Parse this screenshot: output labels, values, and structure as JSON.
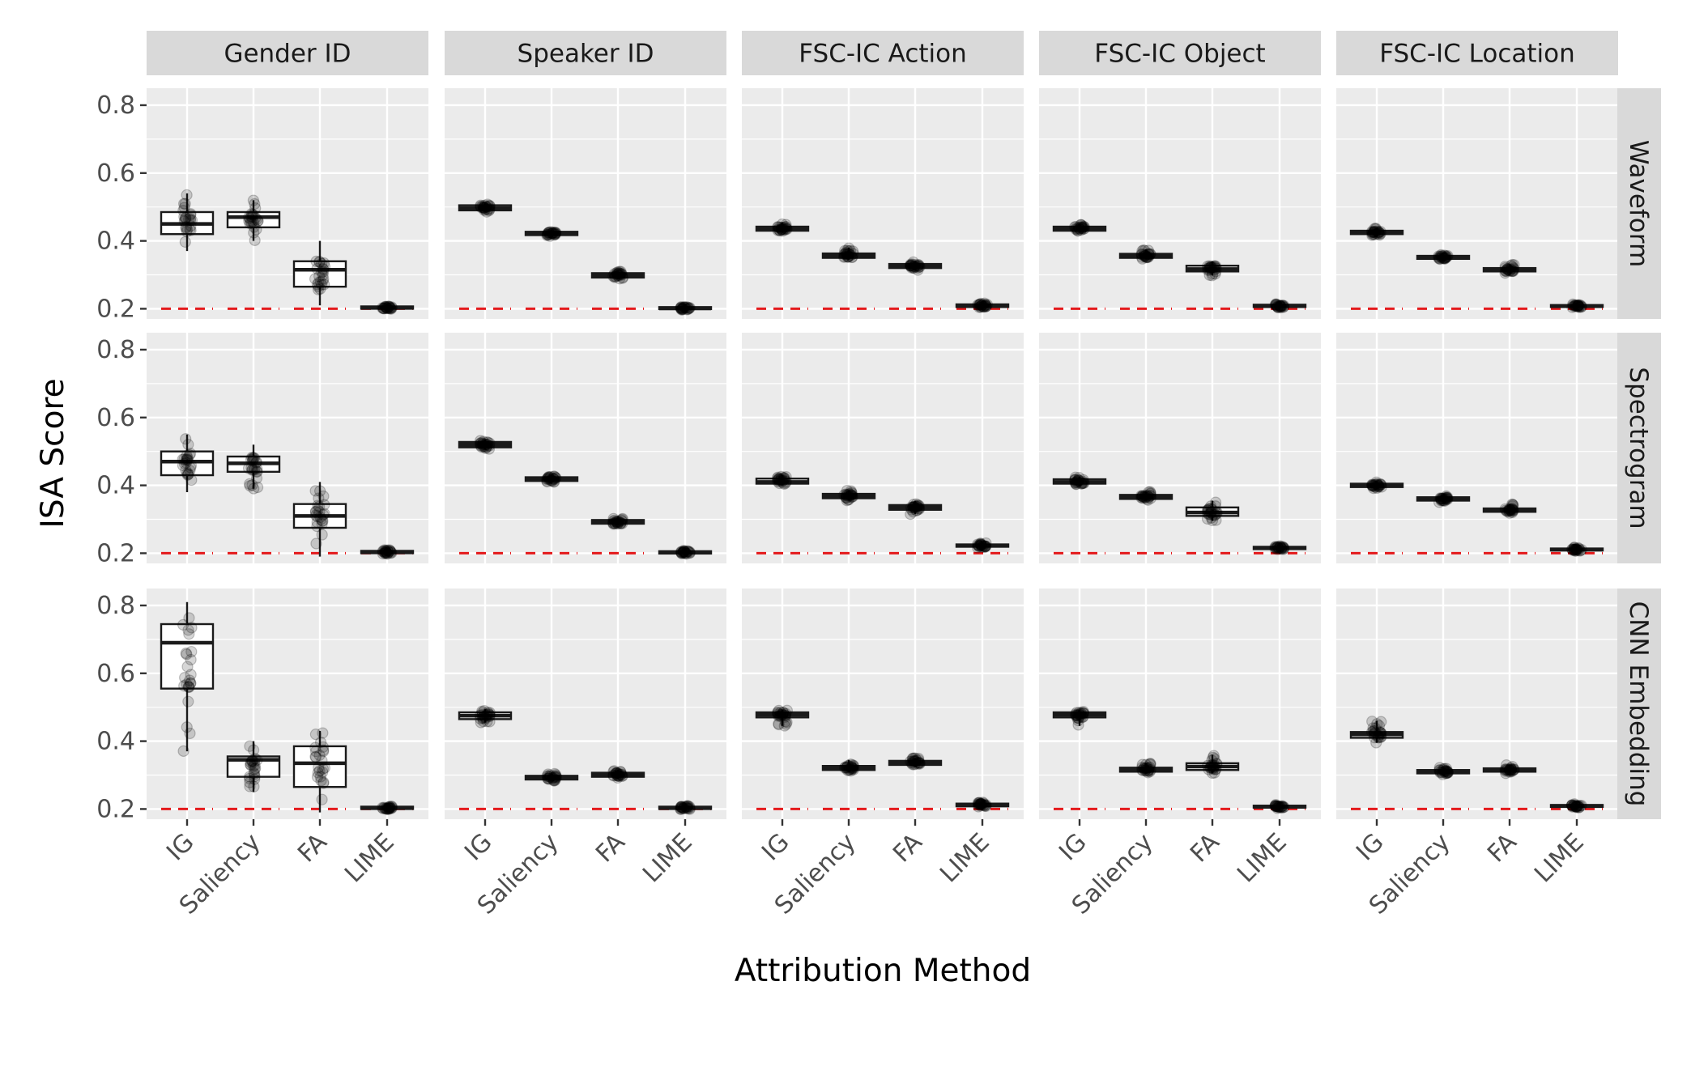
{
  "chart_data": {
    "type": "boxplot",
    "xlabel": "Attribution Method",
    "ylabel": "ISA Score",
    "ylim": [
      0.17,
      0.85
    ],
    "y_ticks": [
      0.2,
      0.4,
      0.6,
      0.8
    ],
    "y_tick_labels": [
      "0.2",
      "0.4",
      "0.6",
      "0.8"
    ],
    "methods": [
      "IG",
      "Saliency",
      "FA",
      "LIME"
    ],
    "columns": [
      "Gender ID",
      "Speaker ID",
      "FSC-IC Action",
      "FSC-IC Object",
      "FSC-IC Location"
    ],
    "rows": [
      "Waveform",
      "Spectrogram",
      "CNN Embedding"
    ],
    "baseline_value": 0.2,
    "colors": {
      "baseline": "#e41a1c",
      "panel": "#ebebeb",
      "strip": "#d9d9d9"
    },
    "grid": true,
    "panels": [
      {
        "row": "Waveform",
        "col": "Gender ID",
        "boxes": [
          {
            "method": "IG",
            "q1": 0.42,
            "median": 0.45,
            "q3": 0.485,
            "min": 0.37,
            "max": 0.54
          },
          {
            "method": "Saliency",
            "q1": 0.44,
            "median": 0.47,
            "q3": 0.485,
            "min": 0.4,
            "max": 0.52
          },
          {
            "method": "FA",
            "q1": 0.265,
            "median": 0.315,
            "q3": 0.34,
            "min": 0.21,
            "max": 0.4
          },
          {
            "method": "LIME",
            "q1": 0.2,
            "median": 0.203,
            "q3": 0.207,
            "min": 0.198,
            "max": 0.21
          }
        ]
      },
      {
        "row": "Waveform",
        "col": "Speaker ID",
        "boxes": [
          {
            "method": "IG",
            "q1": 0.49,
            "median": 0.497,
            "q3": 0.505,
            "min": 0.485,
            "max": 0.51
          },
          {
            "method": "Saliency",
            "q1": 0.417,
            "median": 0.422,
            "q3": 0.427,
            "min": 0.413,
            "max": 0.43
          },
          {
            "method": "FA",
            "q1": 0.292,
            "median": 0.298,
            "q3": 0.305,
            "min": 0.288,
            "max": 0.31
          },
          {
            "method": "LIME",
            "q1": 0.199,
            "median": 0.201,
            "q3": 0.205,
            "min": 0.197,
            "max": 0.207
          }
        ]
      },
      {
        "row": "Waveform",
        "col": "FSC-IC Action",
        "boxes": [
          {
            "method": "IG",
            "q1": 0.43,
            "median": 0.435,
            "q3": 0.442,
            "min": 0.425,
            "max": 0.455
          },
          {
            "method": "Saliency",
            "q1": 0.35,
            "median": 0.357,
            "q3": 0.363,
            "min": 0.345,
            "max": 0.38
          },
          {
            "method": "FA",
            "q1": 0.32,
            "median": 0.325,
            "q3": 0.332,
            "min": 0.312,
            "max": 0.34
          },
          {
            "method": "LIME",
            "q1": 0.205,
            "median": 0.208,
            "q3": 0.213,
            "min": 0.202,
            "max": 0.217
          }
        ]
      },
      {
        "row": "Waveform",
        "col": "FSC-IC Object",
        "boxes": [
          {
            "method": "IG",
            "q1": 0.43,
            "median": 0.435,
            "q3": 0.442,
            "min": 0.425,
            "max": 0.448
          },
          {
            "method": "Saliency",
            "q1": 0.35,
            "median": 0.356,
            "q3": 0.362,
            "min": 0.345,
            "max": 0.375
          },
          {
            "method": "FA",
            "q1": 0.31,
            "median": 0.317,
            "q3": 0.327,
            "min": 0.298,
            "max": 0.34
          },
          {
            "method": "LIME",
            "q1": 0.205,
            "median": 0.208,
            "q3": 0.212,
            "min": 0.203,
            "max": 0.215
          }
        ]
      },
      {
        "row": "Waveform",
        "col": "FSC-IC Location",
        "boxes": [
          {
            "method": "IG",
            "q1": 0.42,
            "median": 0.425,
            "q3": 0.43,
            "min": 0.415,
            "max": 0.438
          },
          {
            "method": "Saliency",
            "q1": 0.347,
            "median": 0.351,
            "q3": 0.356,
            "min": 0.343,
            "max": 0.36
          },
          {
            "method": "FA",
            "q1": 0.31,
            "median": 0.315,
            "q3": 0.32,
            "min": 0.305,
            "max": 0.33
          },
          {
            "method": "LIME",
            "q1": 0.205,
            "median": 0.208,
            "q3": 0.211,
            "min": 0.203,
            "max": 0.214
          }
        ]
      },
      {
        "row": "Spectrogram",
        "col": "Gender ID",
        "boxes": [
          {
            "method": "IG",
            "q1": 0.43,
            "median": 0.47,
            "q3": 0.5,
            "min": 0.38,
            "max": 0.55
          },
          {
            "method": "Saliency",
            "q1": 0.44,
            "median": 0.465,
            "q3": 0.485,
            "min": 0.39,
            "max": 0.52
          },
          {
            "method": "FA",
            "q1": 0.275,
            "median": 0.31,
            "q3": 0.345,
            "min": 0.19,
            "max": 0.41
          },
          {
            "method": "LIME",
            "q1": 0.2,
            "median": 0.203,
            "q3": 0.207,
            "min": 0.198,
            "max": 0.21
          }
        ]
      },
      {
        "row": "Spectrogram",
        "col": "Speaker ID",
        "boxes": [
          {
            "method": "IG",
            "q1": 0.512,
            "median": 0.52,
            "q3": 0.528,
            "min": 0.505,
            "max": 0.535
          },
          {
            "method": "Saliency",
            "q1": 0.413,
            "median": 0.418,
            "q3": 0.424,
            "min": 0.41,
            "max": 0.428
          },
          {
            "method": "FA",
            "q1": 0.287,
            "median": 0.292,
            "q3": 0.298,
            "min": 0.283,
            "max": 0.305
          },
          {
            "method": "LIME",
            "q1": 0.199,
            "median": 0.202,
            "q3": 0.206,
            "min": 0.197,
            "max": 0.208
          }
        ]
      },
      {
        "row": "Spectrogram",
        "col": "FSC-IC Action",
        "boxes": [
          {
            "method": "IG",
            "q1": 0.405,
            "median": 0.41,
            "q3": 0.42,
            "min": 0.4,
            "max": 0.43
          },
          {
            "method": "Saliency",
            "q1": 0.362,
            "median": 0.368,
            "q3": 0.375,
            "min": 0.355,
            "max": 0.385
          },
          {
            "method": "FA",
            "q1": 0.328,
            "median": 0.335,
            "q3": 0.342,
            "min": 0.315,
            "max": 0.355
          },
          {
            "method": "LIME",
            "q1": 0.219,
            "median": 0.222,
            "q3": 0.226,
            "min": 0.215,
            "max": 0.23
          }
        ]
      },
      {
        "row": "Spectrogram",
        "col": "FSC-IC Object",
        "boxes": [
          {
            "method": "IG",
            "q1": 0.405,
            "median": 0.41,
            "q3": 0.418,
            "min": 0.4,
            "max": 0.425
          },
          {
            "method": "Saliency",
            "q1": 0.36,
            "median": 0.366,
            "q3": 0.372,
            "min": 0.355,
            "max": 0.382
          },
          {
            "method": "FA",
            "q1": 0.31,
            "median": 0.32,
            "q3": 0.335,
            "min": 0.295,
            "max": 0.355
          },
          {
            "method": "LIME",
            "q1": 0.212,
            "median": 0.216,
            "q3": 0.219,
            "min": 0.21,
            "max": 0.222
          }
        ]
      },
      {
        "row": "Spectrogram",
        "col": "FSC-IC Location",
        "boxes": [
          {
            "method": "IG",
            "q1": 0.395,
            "median": 0.4,
            "q3": 0.405,
            "min": 0.39,
            "max": 0.413
          },
          {
            "method": "Saliency",
            "q1": 0.355,
            "median": 0.36,
            "q3": 0.365,
            "min": 0.35,
            "max": 0.37
          },
          {
            "method": "FA",
            "q1": 0.322,
            "median": 0.327,
            "q3": 0.332,
            "min": 0.318,
            "max": 0.345
          },
          {
            "method": "LIME",
            "q1": 0.208,
            "median": 0.211,
            "q3": 0.214,
            "min": 0.205,
            "max": 0.217
          }
        ]
      },
      {
        "row": "CNN Embedding",
        "col": "Gender ID",
        "boxes": [
          {
            "method": "IG",
            "q1": 0.555,
            "median": 0.69,
            "q3": 0.745,
            "min": 0.37,
            "max": 0.81
          },
          {
            "method": "Saliency",
            "q1": 0.295,
            "median": 0.345,
            "q3": 0.355,
            "min": 0.25,
            "max": 0.4
          },
          {
            "method": "FA",
            "q1": 0.265,
            "median": 0.335,
            "q3": 0.385,
            "min": 0.19,
            "max": 0.43
          },
          {
            "method": "LIME",
            "q1": 0.2,
            "median": 0.203,
            "q3": 0.207,
            "min": 0.198,
            "max": 0.21
          }
        ]
      },
      {
        "row": "CNN Embedding",
        "col": "Speaker ID",
        "boxes": [
          {
            "method": "IG",
            "q1": 0.465,
            "median": 0.475,
            "q3": 0.485,
            "min": 0.455,
            "max": 0.495
          },
          {
            "method": "Saliency",
            "q1": 0.287,
            "median": 0.292,
            "q3": 0.298,
            "min": 0.283,
            "max": 0.305
          },
          {
            "method": "FA",
            "q1": 0.295,
            "median": 0.3,
            "q3": 0.307,
            "min": 0.29,
            "max": 0.315
          },
          {
            "method": "LIME",
            "q1": 0.2,
            "median": 0.203,
            "q3": 0.207,
            "min": 0.198,
            "max": 0.21
          }
        ]
      },
      {
        "row": "CNN Embedding",
        "col": "FSC-IC Action",
        "boxes": [
          {
            "method": "IG",
            "q1": 0.47,
            "median": 0.478,
            "q3": 0.485,
            "min": 0.445,
            "max": 0.492
          },
          {
            "method": "Saliency",
            "q1": 0.315,
            "median": 0.32,
            "q3": 0.327,
            "min": 0.31,
            "max": 0.345
          },
          {
            "method": "FA",
            "q1": 0.33,
            "median": 0.335,
            "q3": 0.342,
            "min": 0.325,
            "max": 0.35
          },
          {
            "method": "LIME",
            "q1": 0.208,
            "median": 0.211,
            "q3": 0.216,
            "min": 0.205,
            "max": 0.22
          }
        ]
      },
      {
        "row": "CNN Embedding",
        "col": "FSC-IC Object",
        "boxes": [
          {
            "method": "IG",
            "q1": 0.47,
            "median": 0.478,
            "q3": 0.485,
            "min": 0.445,
            "max": 0.492
          },
          {
            "method": "Saliency",
            "q1": 0.31,
            "median": 0.316,
            "q3": 0.322,
            "min": 0.305,
            "max": 0.335
          },
          {
            "method": "FA",
            "q1": 0.315,
            "median": 0.325,
            "q3": 0.335,
            "min": 0.305,
            "max": 0.36
          },
          {
            "method": "LIME",
            "q1": 0.204,
            "median": 0.207,
            "q3": 0.21,
            "min": 0.202,
            "max": 0.213
          }
        ]
      },
      {
        "row": "CNN Embedding",
        "col": "FSC-IC Location",
        "boxes": [
          {
            "method": "IG",
            "q1": 0.41,
            "median": 0.42,
            "q3": 0.427,
            "min": 0.395,
            "max": 0.46
          },
          {
            "method": "Saliency",
            "q1": 0.305,
            "median": 0.31,
            "q3": 0.315,
            "min": 0.3,
            "max": 0.322
          },
          {
            "method": "FA",
            "q1": 0.31,
            "median": 0.315,
            "q3": 0.32,
            "min": 0.305,
            "max": 0.33
          },
          {
            "method": "LIME",
            "q1": 0.206,
            "median": 0.209,
            "q3": 0.212,
            "min": 0.204,
            "max": 0.215
          }
        ]
      }
    ]
  }
}
